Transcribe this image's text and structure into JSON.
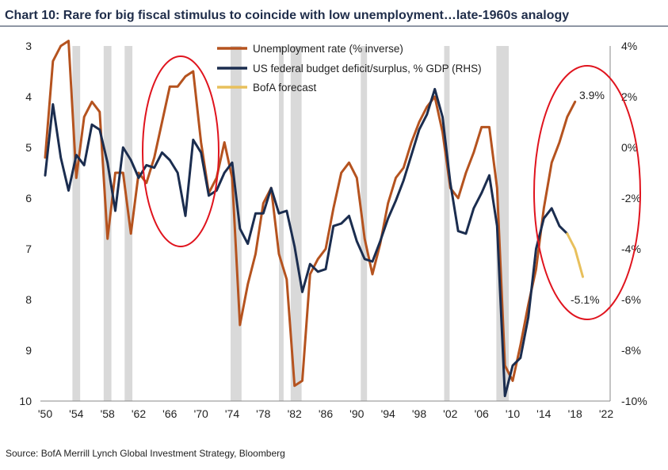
{
  "chart_data": {
    "type": "line",
    "title": "Chart 10: Rare for big fiscal stimulus to coincide with low unemployment…late-1960s analogy",
    "source": "Source:  BofA Merrill Lynch Global Investment Strategy, Bloomberg",
    "x_ticks": [
      "'50",
      "'54",
      "'58",
      "'62",
      "'66",
      "'70",
      "'74",
      "'78",
      "'82",
      "'86",
      "'90",
      "'94",
      "'98",
      "'02",
      "'06",
      "'10",
      "'14",
      "'18",
      "'22"
    ],
    "x_range": [
      1950,
      2022
    ],
    "y_left": {
      "ticks": [
        "3",
        "4",
        "5",
        "6",
        "7",
        "8",
        "9",
        "10"
      ],
      "range": [
        3,
        10
      ],
      "inverted": true
    },
    "y_right": {
      "ticks": [
        "4%",
        "2%",
        "0%",
        "-2%",
        "-4%",
        "-6%",
        "-8%",
        "-10%"
      ],
      "range": [
        -10,
        4
      ]
    },
    "recessions": [
      [
        1953.5,
        1954.5
      ],
      [
        1957.5,
        1958.5
      ],
      [
        1960.2,
        1961.2
      ],
      [
        1973.8,
        1975.2
      ],
      [
        1980,
        1980.6
      ],
      [
        1981.5,
        1982.9
      ],
      [
        1990.5,
        1991.3
      ],
      [
        2001.2,
        2001.9
      ],
      [
        2007.9,
        2009.5
      ]
    ],
    "series": [
      {
        "name": "Unemployment rate (% inverse)",
        "axis": "left",
        "color": "#b5531f",
        "x": [
          1950,
          1951,
          1952,
          1953,
          1954,
          1955,
          1956,
          1957,
          1958,
          1959,
          1960,
          1961,
          1962,
          1963,
          1964,
          1965,
          1966,
          1967,
          1968,
          1969,
          1970,
          1971,
          1972,
          1973,
          1974,
          1975,
          1976,
          1977,
          1978,
          1979,
          1980,
          1981,
          1982,
          1983,
          1984,
          1985,
          1986,
          1987,
          1988,
          1989,
          1990,
          1991,
          1992,
          1993,
          1994,
          1995,
          1996,
          1997,
          1998,
          1999,
          2000,
          2001,
          2002,
          2003,
          2004,
          2005,
          2006,
          2007,
          2008,
          2009,
          2010,
          2011,
          2012,
          2013,
          2014,
          2015,
          2016,
          2017,
          2018
        ],
        "values": [
          5.2,
          3.3,
          3.0,
          2.9,
          5.6,
          4.4,
          4.1,
          4.3,
          6.8,
          5.5,
          5.5,
          6.7,
          5.5,
          5.7,
          5.2,
          4.5,
          3.8,
          3.8,
          3.6,
          3.5,
          4.9,
          5.9,
          5.6,
          4.9,
          5.6,
          8.5,
          7.7,
          7.1,
          6.1,
          5.8,
          7.1,
          7.6,
          9.7,
          9.6,
          7.5,
          7.2,
          7.0,
          6.2,
          5.5,
          5.3,
          5.6,
          6.8,
          7.5,
          6.9,
          6.1,
          5.6,
          5.4,
          4.9,
          4.5,
          4.2,
          4.0,
          4.7,
          5.8,
          6.0,
          5.5,
          5.1,
          4.6,
          4.6,
          5.8,
          9.3,
          9.6,
          8.9,
          8.1,
          7.4,
          6.2,
          5.3,
          4.9,
          4.4,
          4.1
        ]
      },
      {
        "name": "US federal budget deficit/surplus, % GDP (RHS)",
        "axis": "right",
        "color": "#1b2d4f",
        "x": [
          1950,
          1951,
          1952,
          1953,
          1954,
          1955,
          1956,
          1957,
          1958,
          1959,
          1960,
          1961,
          1962,
          1963,
          1964,
          1965,
          1966,
          1967,
          1968,
          1969,
          1970,
          1971,
          1972,
          1973,
          1974,
          1975,
          1976,
          1977,
          1978,
          1979,
          1980,
          1981,
          1982,
          1983,
          1984,
          1985,
          1986,
          1987,
          1988,
          1989,
          1990,
          1991,
          1992,
          1993,
          1994,
          1995,
          1996,
          1997,
          1998,
          1999,
          2000,
          2001,
          2002,
          2003,
          2004,
          2005,
          2006,
          2007,
          2008,
          2009,
          2010,
          2011,
          2012,
          2013,
          2014,
          2015,
          2016,
          2017
        ],
        "values": [
          -1.1,
          1.7,
          -0.4,
          -1.7,
          -0.3,
          -0.7,
          0.9,
          0.7,
          -0.6,
          -2.5,
          0.0,
          -0.5,
          -1.2,
          -0.7,
          -0.8,
          -0.2,
          -0.5,
          -1.0,
          -2.7,
          0.3,
          -0.2,
          -1.9,
          -1.7,
          -1.0,
          -0.6,
          -3.2,
          -3.8,
          -2.6,
          -2.6,
          -1.6,
          -2.6,
          -2.5,
          -3.9,
          -5.7,
          -4.6,
          -4.9,
          -4.8,
          -3.1,
          -3.0,
          -2.7,
          -3.7,
          -4.4,
          -4.5,
          -3.7,
          -2.8,
          -2.1,
          -1.3,
          -0.3,
          0.7,
          1.3,
          2.3,
          1.2,
          -1.4,
          -3.3,
          -3.4,
          -2.4,
          -1.8,
          -1.1,
          -3.1,
          -9.8,
          -8.6,
          -8.3,
          -6.7,
          -4.0,
          -2.8,
          -2.4,
          -3.1,
          -3.4
        ]
      },
      {
        "name": "BofA forecast",
        "axis": "right",
        "color": "#e8c05c",
        "x": [
          2017,
          2018,
          2019
        ],
        "values": [
          -3.4,
          -4.0,
          -5.1
        ]
      }
    ],
    "annotations": [
      "3.9%",
      "-5.1%"
    ]
  }
}
